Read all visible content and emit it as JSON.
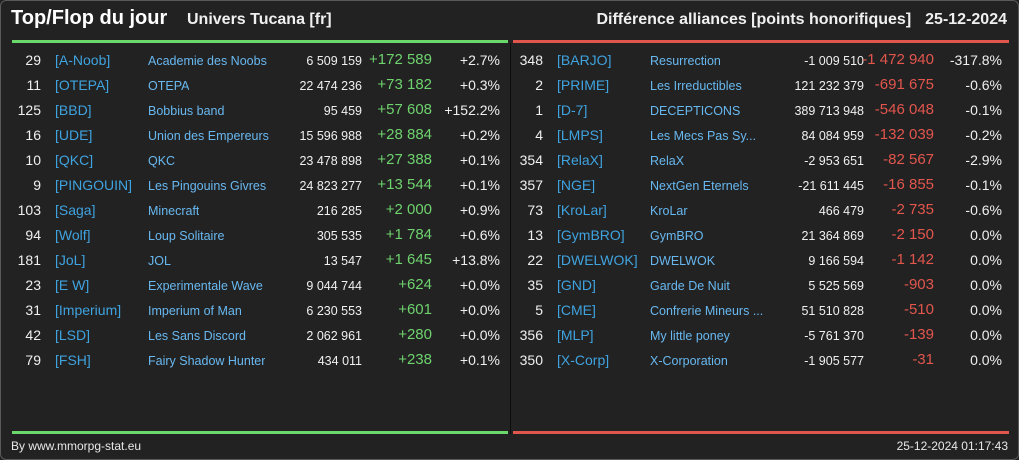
{
  "header": {
    "title": "Top/Flop du jour",
    "universe": "Univers Tucana [fr]",
    "metric": "Différence alliances [points honorifiques]",
    "date": "25-12-2024"
  },
  "colors": {
    "gain": "#6ed26e",
    "loss": "#e2564d",
    "tag": "#3fa3e0",
    "background": "#222222"
  },
  "top": [
    {
      "rank": "29",
      "tag": "[A-Noob]",
      "name": "Academie des Noobs",
      "points": "6 509 159",
      "diff": "+172 589",
      "pct": "+2.7%"
    },
    {
      "rank": "11",
      "tag": "[OTEPA]",
      "name": "OTEPA",
      "points": "22 474 236",
      "diff": "+73 182",
      "pct": "+0.3%"
    },
    {
      "rank": "125",
      "tag": "[BBD]",
      "name": "Bobbius band",
      "points": "95 459",
      "diff": "+57 608",
      "pct": "+152.2%"
    },
    {
      "rank": "16",
      "tag": "[UDE]",
      "name": "Union des Empereurs",
      "points": "15 596 988",
      "diff": "+28 884",
      "pct": "+0.2%"
    },
    {
      "rank": "10",
      "tag": "[QKC]",
      "name": "QKC",
      "points": "23 478 898",
      "diff": "+27 388",
      "pct": "+0.1%"
    },
    {
      "rank": "9",
      "tag": "[PINGOUIN]",
      "name": "Les Pingouins Givres",
      "points": "24 823 277",
      "diff": "+13 544",
      "pct": "+0.1%"
    },
    {
      "rank": "103",
      "tag": "[Saga]",
      "name": "Minecraft",
      "points": "216 285",
      "diff": "+2 000",
      "pct": "+0.9%"
    },
    {
      "rank": "94",
      "tag": "[Wolf]",
      "name": "Loup Solitaire",
      "points": "305 535",
      "diff": "+1 784",
      "pct": "+0.6%"
    },
    {
      "rank": "181",
      "tag": "[JoL]",
      "name": "JOL",
      "points": "13 547",
      "diff": "+1 645",
      "pct": "+13.8%"
    },
    {
      "rank": "23",
      "tag": "[E W]",
      "name": "Experimentale Wave",
      "points": "9 044 744",
      "diff": "+624",
      "pct": "+0.0%"
    },
    {
      "rank": "31",
      "tag": "[Imperium]",
      "name": "Imperium of Man",
      "points": "6 230 553",
      "diff": "+601",
      "pct": "+0.0%"
    },
    {
      "rank": "42",
      "tag": "[LSD]",
      "name": "Les Sans Discord",
      "points": "2 062 961",
      "diff": "+280",
      "pct": "+0.0%"
    },
    {
      "rank": "79",
      "tag": "[FSH]",
      "name": "Fairy Shadow Hunter",
      "points": "434 011",
      "diff": "+238",
      "pct": "+0.1%"
    }
  ],
  "flop": [
    {
      "rank": "348",
      "tag": "[BARJO]",
      "name": "Resurrection",
      "points": "-1 009 510",
      "diff": "-1 472 940",
      "pct": "-317.8%"
    },
    {
      "rank": "2",
      "tag": "[PRIME]",
      "name": "Les Irreductibles",
      "points": "121 232 379",
      "diff": "-691 675",
      "pct": "-0.6%"
    },
    {
      "rank": "1",
      "tag": "[D-7]",
      "name": "DECEPTICONS",
      "points": "389 713 948",
      "diff": "-546 048",
      "pct": "-0.1%"
    },
    {
      "rank": "4",
      "tag": "[LMPS]",
      "name": "Les Mecs Pas Sy...",
      "points": "84 084 959",
      "diff": "-132 039",
      "pct": "-0.2%"
    },
    {
      "rank": "354",
      "tag": "[RelaX]",
      "name": "RelaX",
      "points": "-2 953 651",
      "diff": "-82 567",
      "pct": "-2.9%"
    },
    {
      "rank": "357",
      "tag": "[NGE]",
      "name": "NextGen Eternels",
      "points": "-21 611 445",
      "diff": "-16 855",
      "pct": "-0.1%"
    },
    {
      "rank": "73",
      "tag": "[KroLar]",
      "name": "KroLar",
      "points": "466 479",
      "diff": "-2 735",
      "pct": "-0.6%"
    },
    {
      "rank": "13",
      "tag": "[GymBRO]",
      "name": "GymBRO",
      "points": "21 364 869",
      "diff": "-2 150",
      "pct": "0.0%"
    },
    {
      "rank": "22",
      "tag": "[DWELWOK]",
      "name": "DWELWOK",
      "points": "9 166 594",
      "diff": "-1 142",
      "pct": "0.0%"
    },
    {
      "rank": "35",
      "tag": "[GND]",
      "name": "Garde De Nuit",
      "points": "5 525 569",
      "diff": "-903",
      "pct": "0.0%"
    },
    {
      "rank": "5",
      "tag": "[CME]",
      "name": "Confrerie Mineurs ...",
      "points": "51 510 828",
      "diff": "-510",
      "pct": "0.0%"
    },
    {
      "rank": "356",
      "tag": "[MLP]",
      "name": "My little poney",
      "points": "-5 761 370",
      "diff": "-139",
      "pct": "0.0%"
    },
    {
      "rank": "350",
      "tag": "[X-Corp]",
      "name": "X-Corporation",
      "points": "-1 905 577",
      "diff": "-31",
      "pct": "0.0%"
    }
  ],
  "footer": {
    "source": "By www.mmorpg-stat.eu",
    "timestamp": "25-12-2024 01:17:43"
  }
}
